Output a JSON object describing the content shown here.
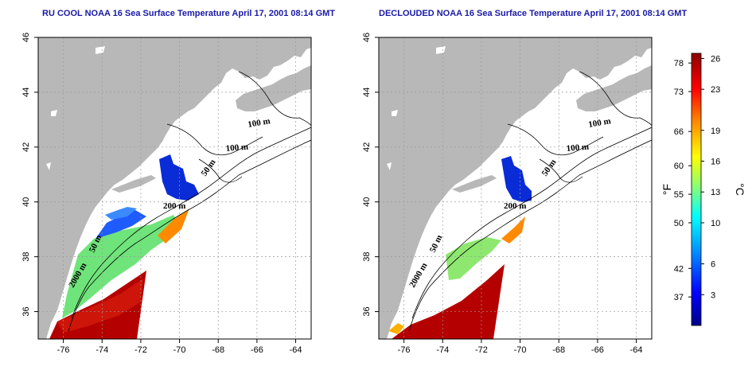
{
  "maps": [
    {
      "id": "left",
      "title": "RU COOL NOAA 16 Sea Surface Temperature April 17, 2001 08:14 GMT",
      "lon_ticks": [
        -76,
        -74,
        -72,
        -70,
        -68,
        -66,
        -64
      ],
      "lat_ticks": [
        36,
        38,
        40,
        42,
        44,
        46
      ],
      "lon_range": [
        -77.3,
        -63.2
      ],
      "lat_range": [
        35,
        46
      ],
      "contour_labels": [
        "100 m",
        "100 m",
        "50 m",
        "200 m",
        "50 m",
        "2000 m"
      ]
    },
    {
      "id": "right",
      "title": "DECLOUDED NOAA 16 Sea Surface Temperature April 17, 2001 08:14 GMT",
      "lon_ticks": [
        -76,
        -74,
        -72,
        -70,
        -68,
        -66,
        -64
      ],
      "lat_ticks": [
        36,
        38,
        40,
        42,
        44,
        46
      ],
      "lon_range": [
        -77.3,
        -63.2
      ],
      "lat_range": [
        35,
        46
      ],
      "contour_labels": [
        "100 m",
        "100 m",
        "50 m",
        "200 m",
        "50 m",
        "2000 m"
      ]
    }
  ],
  "colorbar": {
    "f_label": "°F",
    "c_label": "°C",
    "f_ticks": [
      37,
      42,
      50,
      55,
      60,
      66,
      73,
      78
    ],
    "c_ticks": [
      3,
      6,
      10,
      13,
      16,
      19,
      23,
      26
    ],
    "range_c": [
      0,
      26.5
    ],
    "colors": [
      "#000088",
      "#0000ff",
      "#00aaff",
      "#00ffff",
      "#7fff7f",
      "#ffff00",
      "#ff8800",
      "#ff0000",
      "#8b0000"
    ]
  },
  "colors": {
    "land": "#b8b8b8",
    "grid": "#9a9a9a",
    "title": "#1a1aa6",
    "contour": "#000000"
  }
}
